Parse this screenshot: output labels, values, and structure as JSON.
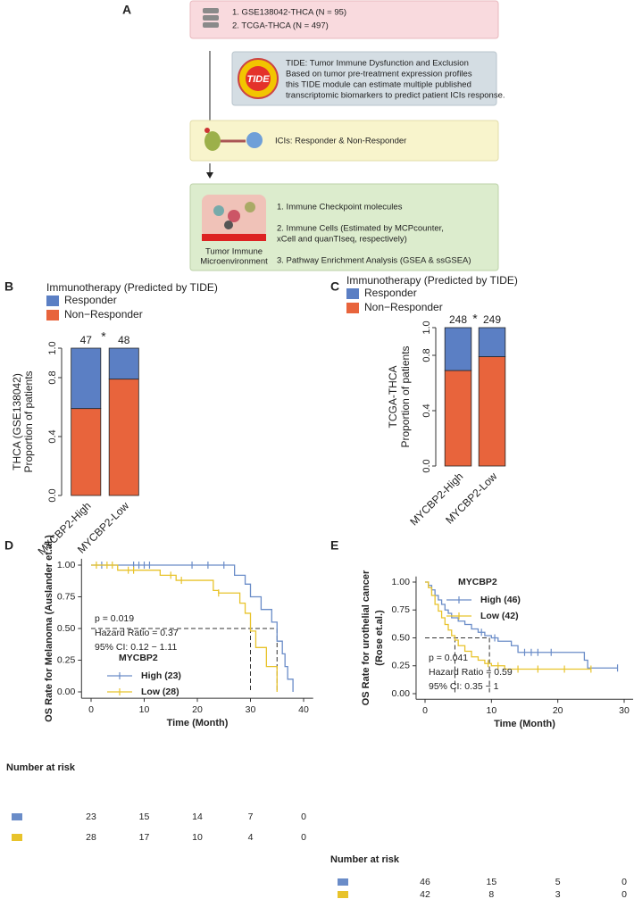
{
  "panel_a": {
    "label": "A",
    "datasets": [
      "1. GSE138042-THCA (N = 95)",
      "2. TCGA-THCA (N = 497)"
    ],
    "tide_logo": "TIDE",
    "tide_text": [
      "TIDE: Tumor Immune Dysfunction and Exclusion",
      "Based on tumor pre-treatment expression profiles",
      "this TIDE module can estimate multiple published",
      "transcriptomic biomarkers to predict patient ICIs response."
    ],
    "ici_text": "ICIs: Responder & Non-Responder",
    "analyses": [
      "1. Immune Checkpoint molecules",
      "2. Immune Cells (Estimated by MCPcounter,",
      "xCell and quanTIseq, respectively)",
      "3. Pathway Enrichment Analysis (GSEA & ssGSEA)"
    ],
    "tme_label": [
      "Tumor Immune",
      "Microenvironment"
    ]
  },
  "chart_data": [
    {
      "type": "bar",
      "label": "B",
      "legend_title": "Immunotherapy (Predicted by TIDE)",
      "ylabel": [
        "THCA (GSE138042)",
        "Proportion of patients"
      ],
      "categories": [
        "MYCBP2-High",
        "MYCBP2-Low"
      ],
      "series": [
        {
          "name": "Responder",
          "color": "#5b7fc4",
          "values": [
            0.41,
            0.21
          ]
        },
        {
          "name": "Non−Responder",
          "color": "#e8643c",
          "values": [
            0.59,
            0.79
          ]
        }
      ],
      "stack_order": "Non−Responder below",
      "bar_labels": [
        47,
        48
      ],
      "annotation": "*",
      "ylim": [
        0,
        1
      ],
      "yticks": [
        {
          "value": 0,
          "label": "0.0"
        },
        0.4,
        0.8,
        {
          "value": 1,
          "label": "1.0"
        }
      ]
    },
    {
      "type": "bar",
      "label": "C",
      "legend_title": "Immunotherapy (Predicted by TIDE)",
      "ylabel": [
        "TCGA-THCA",
        "Proportion of patients"
      ],
      "categories": [
        "MYCBP2-High",
        "MYCBP2-Low"
      ],
      "series": [
        {
          "name": "Responder",
          "color": "#5b7fc4",
          "values": [
            0.31,
            0.21
          ]
        },
        {
          "name": "Non−Responder",
          "color": "#e8643c",
          "values": [
            0.69,
            0.79
          ]
        }
      ],
      "bar_labels": [
        248,
        249
      ],
      "annotation": "*",
      "ylim": [
        0,
        1
      ],
      "yticks": [
        {
          "value": 0,
          "label": "0.0"
        },
        0.4,
        0.8,
        {
          "value": 1,
          "label": "1.0"
        }
      ]
    },
    {
      "type": "km",
      "label": "D",
      "xlabel": "Time (Month)",
      "ylabel": [
        "OS Rate for Melanoma (Auslander et.al.)"
      ],
      "legend_title": "MYCBP2",
      "series": [
        {
          "name": "High (23)",
          "color": "#6a8cc8",
          "x": [
            0,
            27,
            29,
            30,
            32,
            34,
            35,
            36,
            36.5,
            37,
            38
          ],
          "values": [
            1,
            0.92,
            0.85,
            0.75,
            0.65,
            0.55,
            0.4,
            0.3,
            0.2,
            0.1,
            0
          ],
          "censored": [
            2,
            8,
            9,
            10,
            11,
            19,
            22,
            25
          ]
        },
        {
          "name": "Low (28)",
          "color": "#e8c32b",
          "x": [
            0,
            5,
            13,
            16,
            23,
            24,
            28,
            29,
            30,
            31,
            33,
            35
          ],
          "values": [
            1,
            0.96,
            0.92,
            0.88,
            0.8,
            0.78,
            0.7,
            0.62,
            0.48,
            0.35,
            0.2,
            0
          ],
          "censored": [
            1,
            3,
            4,
            7,
            8,
            15,
            17,
            24
          ]
        }
      ],
      "median_y": 0.5,
      "median_x": [
        30,
        35
      ],
      "annotations": [
        "p = 0.019",
        "Hazard Ratio = 0.37",
        "95% CI: 0.12 − 1.11"
      ],
      "xlim": [
        0,
        40
      ],
      "xticks": [
        0,
        10,
        20,
        30,
        40
      ],
      "ylim": [
        0,
        1
      ],
      "yticks": [
        {
          "value": 0,
          "label": "0.00"
        },
        {
          "value": 0.25,
          "label": "0.25"
        },
        {
          "value": 0.5,
          "label": "0.50"
        },
        {
          "value": 0.75,
          "label": "0.75"
        },
        {
          "value": 1,
          "label": "1.00"
        }
      ],
      "risk_title": "Number at risk",
      "risk_rows": [
        [
          23,
          15,
          14,
          7,
          0
        ],
        [
          28,
          17,
          10,
          4,
          0
        ]
      ]
    },
    {
      "type": "km",
      "label": "E",
      "xlabel": "Time (Month)",
      "ylabel": [
        "OS Rate for urothelial cancer",
        "(Rose et.al.)"
      ],
      "legend_title": "MYCBP2",
      "series": [
        {
          "name": "High (46)",
          "color": "#6a8cc8",
          "x": [
            0,
            0.5,
            1,
            1.5,
            2,
            2.5,
            3,
            3.5,
            4,
            5,
            6,
            7,
            8,
            9,
            10,
            11,
            13,
            14,
            20,
            24,
            24.5,
            29
          ],
          "values": [
            1,
            0.97,
            0.93,
            0.88,
            0.84,
            0.8,
            0.75,
            0.72,
            0.68,
            0.65,
            0.62,
            0.58,
            0.55,
            0.52,
            0.5,
            0.47,
            0.43,
            0.37,
            0.37,
            0.3,
            0.23,
            0.23
          ],
          "censored": [
            8.5,
            10.5,
            15,
            16,
            17,
            19,
            29
          ]
        },
        {
          "name": "Low (42)",
          "color": "#e8c32b",
          "x": [
            0,
            0.5,
            1,
            1.5,
            2,
            2.5,
            3,
            3.5,
            4,
            4.5,
            5,
            6,
            7,
            8,
            9,
            10,
            12,
            25
          ],
          "values": [
            1,
            0.95,
            0.88,
            0.8,
            0.74,
            0.68,
            0.62,
            0.57,
            0.52,
            0.48,
            0.43,
            0.38,
            0.33,
            0.3,
            0.27,
            0.25,
            0.22,
            0.22
          ],
          "censored": [
            9.5,
            11,
            14,
            17,
            21,
            25
          ]
        }
      ],
      "median_y": 0.5,
      "median_x": [
        4.5,
        9.7
      ],
      "annotations": [
        "p = 0.041",
        "Hazard Ratio = 0.59",
        "95% CI: 0.35 − 1"
      ],
      "xlim": [
        0,
        30
      ],
      "xticks": [
        0,
        10,
        20,
        30
      ],
      "ylim": [
        0,
        1
      ],
      "yticks": [
        {
          "value": 0,
          "label": "0.00"
        },
        {
          "value": 0.25,
          "label": "0.25"
        },
        {
          "value": 0.5,
          "label": "0.50"
        },
        {
          "value": 0.75,
          "label": "0.75"
        },
        {
          "value": 1,
          "label": "1.00"
        }
      ],
      "risk_title": "Number at risk",
      "risk_rows": [
        [
          46,
          15,
          5,
          0
        ],
        [
          42,
          8,
          3,
          0
        ]
      ]
    }
  ]
}
